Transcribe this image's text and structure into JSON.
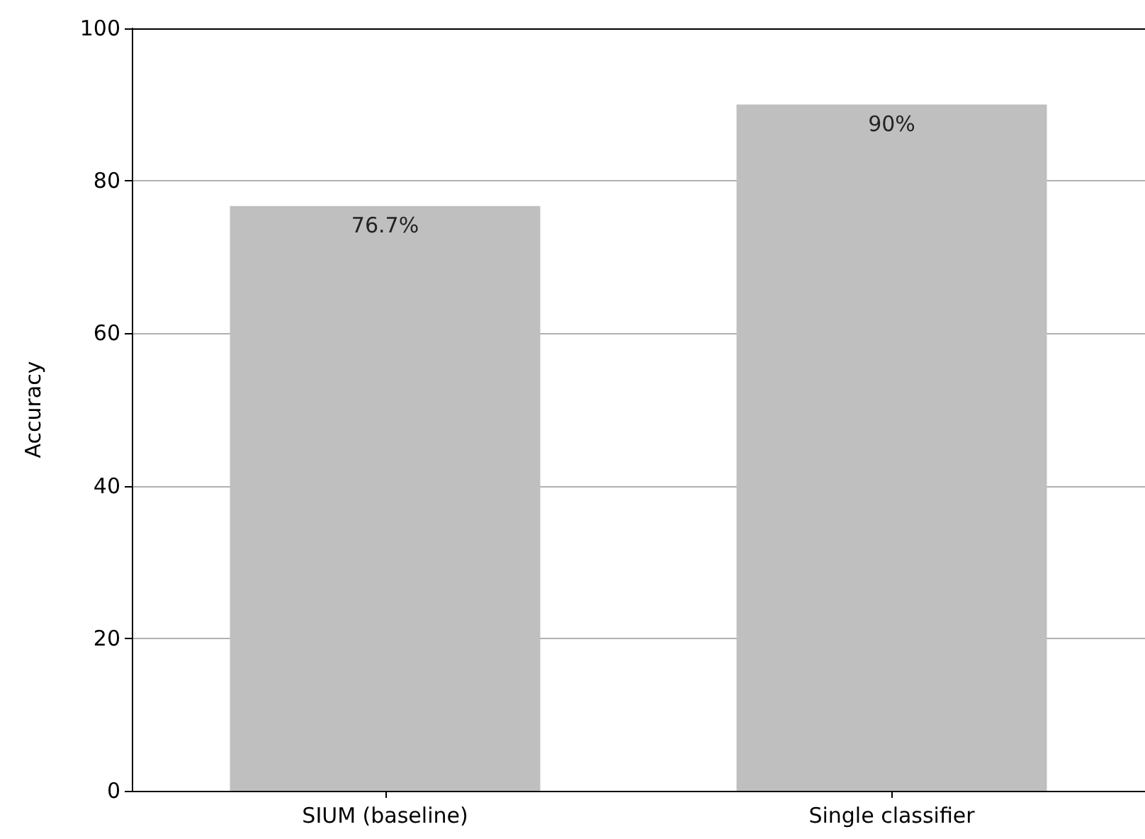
{
  "chart_data": {
    "type": "bar",
    "ylabel": "Accuracy",
    "categories": [
      "SIUM (baseline)",
      "Single classifier"
    ],
    "values": [
      76.7,
      90
    ],
    "value_labels": [
      "76.7%",
      "90%"
    ],
    "color": "#bfbfbf",
    "ylim": [
      0,
      100
    ],
    "yticks": [
      0,
      20,
      40,
      60,
      80,
      100
    ],
    "grid": "y"
  }
}
